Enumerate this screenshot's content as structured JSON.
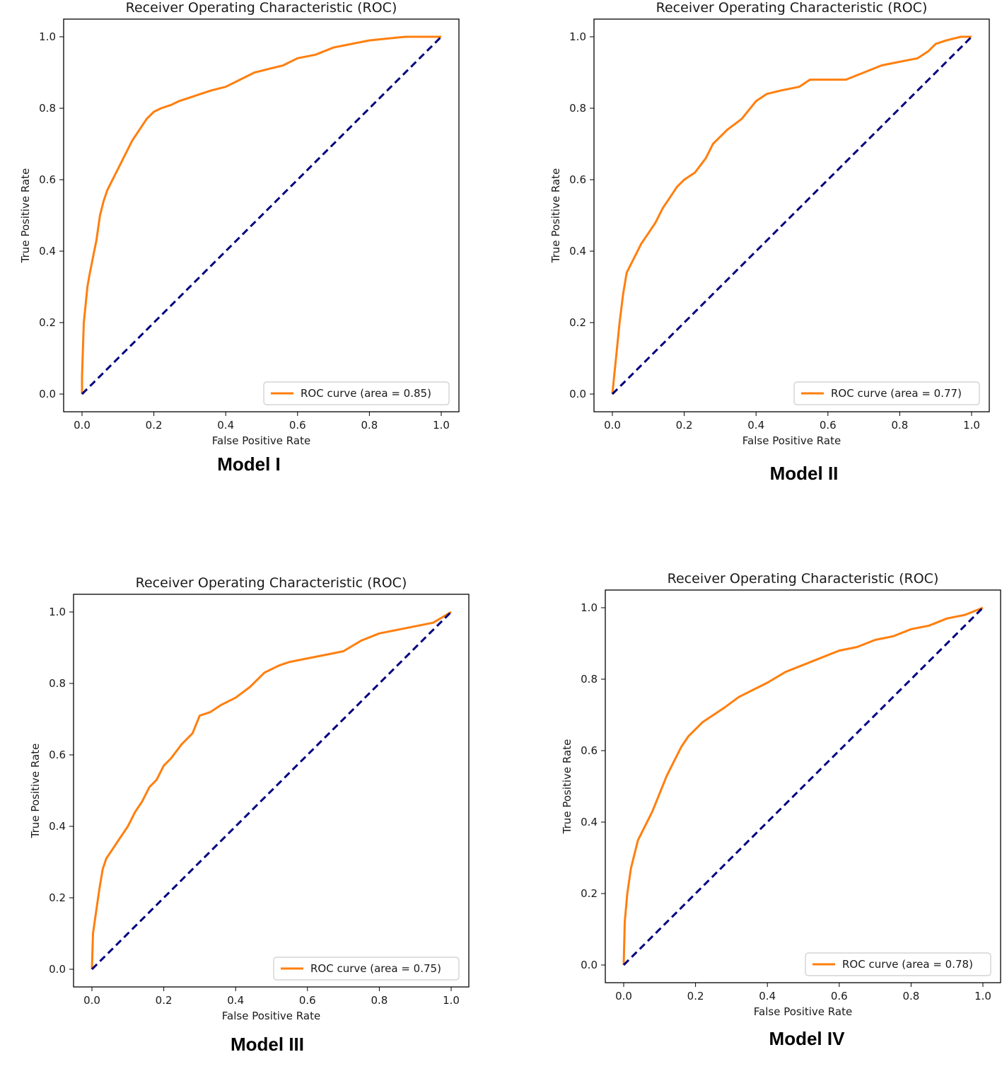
{
  "colors": {
    "roc": "#ff7f0e",
    "diagonal": "#000080",
    "axes": "#000000",
    "legend_border": "#cccccc"
  },
  "chart_data": [
    {
      "type": "line",
      "title": "Receiver Operating Characteristic (ROC)",
      "xlabel": "False Positive Rate",
      "ylabel": "True Positive Rate",
      "caption": "Model I",
      "xlim": [
        0.0,
        1.0
      ],
      "ylim": [
        0.0,
        1.0
      ],
      "xticks": [
        "0.0",
        "0.2",
        "0.4",
        "0.6",
        "0.8",
        "1.0"
      ],
      "yticks": [
        "0.0",
        "0.2",
        "0.4",
        "0.6",
        "0.8",
        "1.0"
      ],
      "legend": "ROC curve (area = 0.85)",
      "legend_position": "lower-right",
      "grid": false,
      "series": [
        {
          "name": "ROC curve (area = 0.85)",
          "style": "solid",
          "x": [
            0,
            0.0,
            0.005,
            0.01,
            0.015,
            0.02,
            0.03,
            0.04,
            0.05,
            0.06,
            0.07,
            0.08,
            0.1,
            0.12,
            0.14,
            0.16,
            0.18,
            0.2,
            0.22,
            0.25,
            0.27,
            0.3,
            0.33,
            0.36,
            0.4,
            0.44,
            0.48,
            0.52,
            0.56,
            0.6,
            0.65,
            0.7,
            0.75,
            0.8,
            0.85,
            0.9,
            0.95,
            1.0
          ],
          "y": [
            0,
            0.05,
            0.2,
            0.25,
            0.3,
            0.33,
            0.38,
            0.43,
            0.5,
            0.54,
            0.57,
            0.59,
            0.63,
            0.67,
            0.71,
            0.74,
            0.77,
            0.79,
            0.8,
            0.81,
            0.82,
            0.83,
            0.84,
            0.85,
            0.86,
            0.88,
            0.9,
            0.91,
            0.92,
            0.94,
            0.95,
            0.97,
            0.98,
            0.99,
            0.995,
            1.0,
            1.0,
            1.0
          ]
        },
        {
          "name": "chance",
          "style": "dashed",
          "x": [
            0,
            1
          ],
          "y": [
            0,
            1
          ]
        }
      ]
    },
    {
      "type": "line",
      "title": "Receiver Operating Characteristic (ROC)",
      "xlabel": "False Positive Rate",
      "ylabel": "True Positive Rate",
      "caption": "Model II",
      "xlim": [
        0.0,
        1.0
      ],
      "ylim": [
        0.0,
        1.0
      ],
      "xticks": [
        "0.0",
        "0.2",
        "0.4",
        "0.6",
        "0.8",
        "1.0"
      ],
      "yticks": [
        "0.0",
        "0.2",
        "0.4",
        "0.6",
        "0.8",
        "1.0"
      ],
      "legend": "ROC curve (area = 0.77)",
      "legend_position": "lower-right",
      "grid": false,
      "series": [
        {
          "name": "ROC curve (area = 0.77)",
          "style": "solid",
          "x": [
            0,
            0.005,
            0.01,
            0.02,
            0.03,
            0.04,
            0.06,
            0.08,
            0.1,
            0.12,
            0.14,
            0.16,
            0.18,
            0.2,
            0.23,
            0.26,
            0.28,
            0.32,
            0.36,
            0.4,
            0.43,
            0.47,
            0.52,
            0.55,
            0.6,
            0.65,
            0.7,
            0.75,
            0.8,
            0.85,
            0.88,
            0.9,
            0.93,
            0.97,
            1.0
          ],
          "y": [
            0,
            0.05,
            0.1,
            0.2,
            0.28,
            0.34,
            0.38,
            0.42,
            0.45,
            0.48,
            0.52,
            0.55,
            0.58,
            0.6,
            0.62,
            0.66,
            0.7,
            0.74,
            0.77,
            0.82,
            0.84,
            0.85,
            0.86,
            0.88,
            0.88,
            0.88,
            0.9,
            0.92,
            0.93,
            0.94,
            0.96,
            0.98,
            0.99,
            1.0,
            1.0
          ]
        },
        {
          "name": "chance",
          "style": "dashed",
          "x": [
            0,
            1
          ],
          "y": [
            0,
            1
          ]
        }
      ]
    },
    {
      "type": "line",
      "title": "Receiver Operating Characteristic (ROC)",
      "xlabel": "False Positive Rate",
      "ylabel": "True Positive Rate",
      "caption": "Model III",
      "xlim": [
        0.0,
        1.0
      ],
      "ylim": [
        0.0,
        1.0
      ],
      "xticks": [
        "0.0",
        "0.2",
        "0.4",
        "0.6",
        "0.8",
        "1.0"
      ],
      "yticks": [
        "0.0",
        "0.2",
        "0.4",
        "0.6",
        "0.8",
        "1.0"
      ],
      "legend": "ROC curve (area = 0.75)",
      "legend_position": "lower-right",
      "grid": false,
      "series": [
        {
          "name": "ROC curve (area = 0.75)",
          "style": "solid",
          "x": [
            0,
            0.003,
            0.01,
            0.02,
            0.03,
            0.04,
            0.06,
            0.08,
            0.1,
            0.12,
            0.14,
            0.16,
            0.18,
            0.2,
            0.22,
            0.25,
            0.28,
            0.3,
            0.33,
            0.36,
            0.4,
            0.44,
            0.48,
            0.52,
            0.55,
            0.6,
            0.65,
            0.7,
            0.75,
            0.8,
            0.85,
            0.9,
            0.95,
            1.0
          ],
          "y": [
            0,
            0.1,
            0.15,
            0.22,
            0.28,
            0.31,
            0.34,
            0.37,
            0.4,
            0.44,
            0.47,
            0.51,
            0.53,
            0.57,
            0.59,
            0.63,
            0.66,
            0.71,
            0.72,
            0.74,
            0.76,
            0.79,
            0.83,
            0.85,
            0.86,
            0.87,
            0.88,
            0.89,
            0.92,
            0.94,
            0.95,
            0.96,
            0.97,
            1.0
          ]
        },
        {
          "name": "chance",
          "style": "dashed",
          "x": [
            0,
            1
          ],
          "y": [
            0,
            1
          ]
        }
      ]
    },
    {
      "type": "line",
      "title": "Receiver Operating Characteristic (ROC)",
      "xlabel": "False Positive Rate",
      "ylabel": "True Positive Rate",
      "caption": "Model IV",
      "xlim": [
        0.0,
        1.0
      ],
      "ylim": [
        0.0,
        1.0
      ],
      "xticks": [
        "0.0",
        "0.2",
        "0.4",
        "0.6",
        "0.8",
        "1.0"
      ],
      "yticks": [
        "0.0",
        "0.2",
        "0.4",
        "0.6",
        "0.8",
        "1.0"
      ],
      "legend": "ROC curve (area = 0.78)",
      "legend_position": "lower-right",
      "grid": false,
      "series": [
        {
          "name": "ROC curve (area = 0.78)",
          "style": "solid",
          "x": [
            0,
            0.003,
            0.01,
            0.02,
            0.03,
            0.04,
            0.05,
            0.06,
            0.08,
            0.1,
            0.12,
            0.14,
            0.16,
            0.18,
            0.2,
            0.22,
            0.25,
            0.28,
            0.32,
            0.36,
            0.4,
            0.45,
            0.5,
            0.55,
            0.6,
            0.65,
            0.7,
            0.75,
            0.8,
            0.85,
            0.9,
            0.95,
            1.0
          ],
          "y": [
            0,
            0.12,
            0.2,
            0.27,
            0.31,
            0.35,
            0.37,
            0.39,
            0.43,
            0.48,
            0.53,
            0.57,
            0.61,
            0.64,
            0.66,
            0.68,
            0.7,
            0.72,
            0.75,
            0.77,
            0.79,
            0.82,
            0.84,
            0.86,
            0.88,
            0.89,
            0.91,
            0.92,
            0.94,
            0.95,
            0.97,
            0.98,
            1.0
          ]
        },
        {
          "name": "chance",
          "style": "dashed",
          "x": [
            0,
            1
          ],
          "y": [
            0,
            1
          ]
        }
      ]
    }
  ]
}
